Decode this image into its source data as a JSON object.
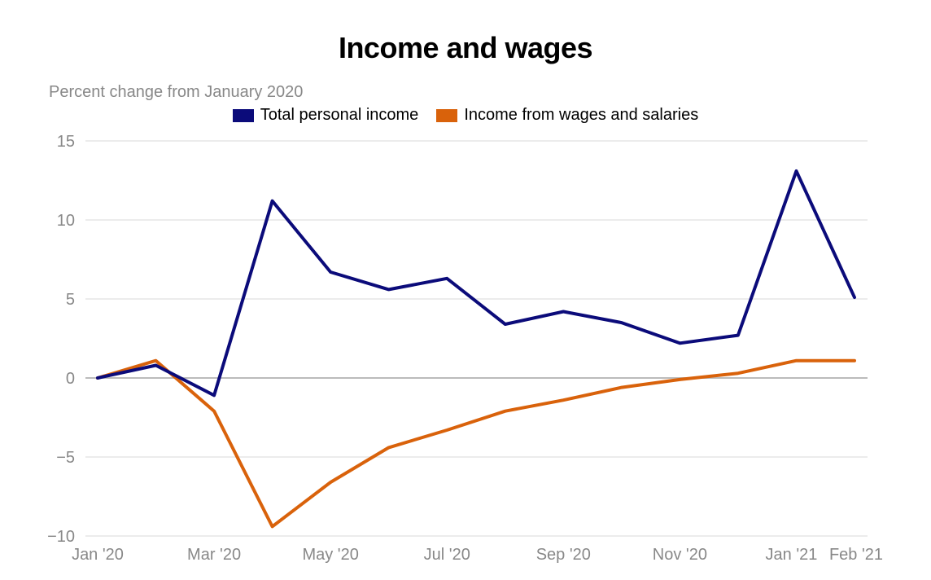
{
  "chart_data": {
    "type": "line",
    "title": "Income and wages",
    "subtitle": "Percent change from January 2020",
    "x": [
      "Jan '20",
      "Feb '20",
      "Mar '20",
      "Apr '20",
      "May '20",
      "Jun '20",
      "Jul '20",
      "Aug '20",
      "Sep '20",
      "Oct '20",
      "Nov '20",
      "Dec '20",
      "Jan '21",
      "Feb '21"
    ],
    "x_tick_labels": [
      "Jan '20",
      "Mar '20",
      "May '20",
      "Jul '20",
      "Sep '20",
      "Nov '20",
      "Jan '21",
      "Feb '21"
    ],
    "y_ticks": [
      15,
      10,
      5,
      0,
      -5,
      -10
    ],
    "y_tick_labels": [
      "15",
      "10",
      "5",
      "0",
      "−5",
      "−10"
    ],
    "ylim": [
      -10,
      15
    ],
    "grid": true,
    "legend_position": "top-center",
    "series": [
      {
        "name": "Total personal income",
        "color": "#0b0b7a",
        "values": [
          0,
          0.8,
          -1.1,
          11.2,
          6.7,
          5.6,
          6.3,
          3.4,
          4.2,
          3.5,
          2.2,
          2.7,
          13.1,
          5.1
        ]
      },
      {
        "name": "Income from wages and salaries",
        "color": "#d9620b",
        "values": [
          0,
          1.1,
          -2.1,
          -9.4,
          -6.6,
          -4.4,
          -3.3,
          -2.1,
          -1.4,
          -0.6,
          -0.1,
          0.3,
          1.1,
          1.1
        ]
      }
    ]
  }
}
